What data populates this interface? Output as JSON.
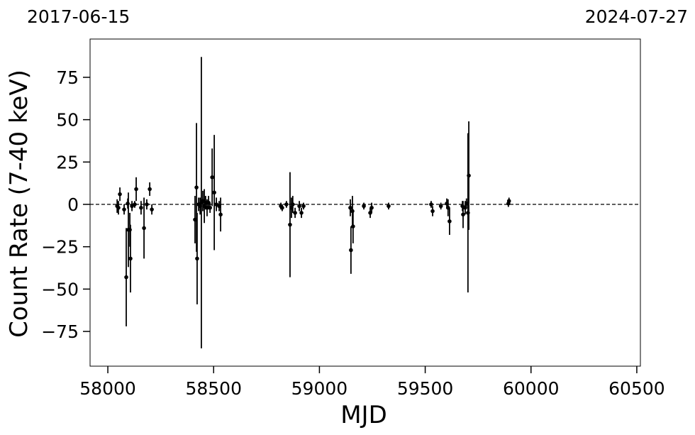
{
  "chart_data": {
    "type": "scatter",
    "annotations": [
      "2017-06-15",
      "2024-07-27"
    ],
    "xlabel": "MJD",
    "ylabel": "Count Rate (7-40 keV)",
    "color": "#000000",
    "reference_line": 0,
    "x": [
      58044,
      58050,
      58057,
      58077,
      58087,
      58094,
      58097,
      58104,
      58107,
      58114,
      58127,
      58134,
      58157,
      58171,
      58184,
      58198,
      58208,
      58412,
      58419,
      58422,
      58429,
      58436,
      58442,
      58449,
      58456,
      58462,
      58469,
      58476,
      58483,
      58493,
      58503,
      58513,
      58526,
      58533,
      58818,
      58824,
      58844,
      58861,
      58868,
      58874,
      58885,
      58905,
      58915,
      58925,
      59146,
      59149,
      59156,
      59159,
      59210,
      59240,
      59247,
      59327,
      59528,
      59535,
      59574,
      59602,
      59608,
      59615,
      59676,
      59679,
      59689,
      59695,
      59702,
      59706,
      59893,
      59896
    ],
    "values": [
      -1,
      -2,
      6,
      -3,
      -43,
      0.5,
      -15,
      -15,
      -32,
      -1,
      0,
      9,
      -2,
      -14,
      0,
      9,
      -3,
      -9,
      10,
      -32,
      0,
      -1,
      1,
      2,
      -1,
      1,
      -2,
      1,
      -2,
      16,
      7,
      0,
      -1,
      -6,
      -1,
      -2,
      0,
      -12,
      -2,
      0,
      -5,
      -1,
      -5,
      -1,
      -2,
      -27,
      -4,
      -13,
      -1,
      -5,
      -2,
      -1,
      0,
      -4,
      -1,
      0.5,
      -2,
      -10,
      -1,
      -6,
      -2,
      0.5,
      -5,
      17,
      0.5,
      2
    ],
    "errors": [
      4,
      4,
      4,
      3,
      29,
      3,
      22,
      10,
      20,
      3,
      2,
      7,
      4,
      18,
      3,
      4,
      3,
      14,
      38,
      27,
      4,
      5,
      86,
      6,
      10,
      4,
      5,
      4,
      3,
      17,
      34,
      4,
      3,
      10,
      2,
      2,
      2,
      31,
      6,
      5,
      3,
      3,
      3,
      2,
      5,
      14,
      9,
      10,
      2,
      3,
      3,
      2,
      2,
      3,
      2,
      3,
      5,
      8,
      3,
      8,
      4,
      3,
      47,
      32,
      2,
      2
    ],
    "xlim": [
      57916,
      60517
    ],
    "ylim": [
      -95.5,
      97.6
    ],
    "xticks": [
      58000,
      58500,
      59000,
      59500,
      60000,
      60500
    ],
    "yticks": [
      {
        "value": -75,
        "label": "−75"
      },
      {
        "value": -50,
        "label": "−50"
      },
      {
        "value": -25,
        "label": "−25"
      },
      0,
      25,
      50,
      75
    ]
  }
}
